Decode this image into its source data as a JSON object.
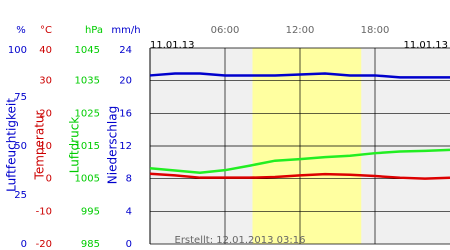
{
  "chart_data": {
    "type": "line",
    "x": [
      0,
      2,
      4,
      6,
      8,
      10,
      12,
      14,
      16,
      18,
      20,
      22,
      24
    ],
    "xlim": [
      0,
      24
    ],
    "xticks": [
      {
        "value": 6,
        "label": "06:00"
      },
      {
        "value": 12,
        "label": "12:00"
      },
      {
        "value": 18,
        "label": "18:00"
      }
    ],
    "date_left": "11.01.13",
    "date_right": "11.01.13",
    "daylight": [
      8.2,
      16.9
    ],
    "footer": "Erstellt: 12.01.2013 03:16",
    "grid": true,
    "axes": [
      {
        "unit": "%",
        "name": "Luftfeuchtigkeit",
        "color": "#0000cc",
        "lim": [
          0,
          100
        ],
        "ticks": [
          0,
          25,
          50,
          75,
          100
        ]
      },
      {
        "unit": "°C",
        "name": "Temperatur",
        "color": "#cc0000",
        "lim": [
          -20,
          40
        ],
        "ticks": [
          -20,
          -10,
          0,
          10,
          20,
          30,
          40
        ]
      },
      {
        "unit": "hPa",
        "name": "Luftdruck",
        "color": "#00cc00",
        "lim": [
          985,
          1045
        ],
        "ticks": [
          985,
          995,
          1005,
          1015,
          1025,
          1035,
          1045
        ]
      },
      {
        "unit": "mm/h",
        "name": "Niederschlag",
        "color": "#0000cc",
        "lim": [
          0,
          24
        ],
        "ticks": [
          0,
          4,
          8,
          12,
          16,
          20,
          24
        ]
      }
    ],
    "series": [
      {
        "axis": 0,
        "color": "#0000cc",
        "values": [
          86,
          87,
          87,
          86,
          86,
          86,
          86.5,
          87,
          86,
          86,
          85,
          85,
          85
        ]
      },
      {
        "axis": 1,
        "color": "#dd0000",
        "values": [
          1.5,
          1,
          0.3,
          0.3,
          0.3,
          0.5,
          1,
          1.4,
          1.2,
          0.8,
          0.3,
          0,
          0.3
        ]
      },
      {
        "axis": 2,
        "color": "#22ee22",
        "values": [
          1008.2,
          1007.5,
          1006.8,
          1007.6,
          1009,
          1010.5,
          1011,
          1011.6,
          1012,
          1012.8,
          1013.3,
          1013.5,
          1013.8
        ]
      }
    ]
  }
}
